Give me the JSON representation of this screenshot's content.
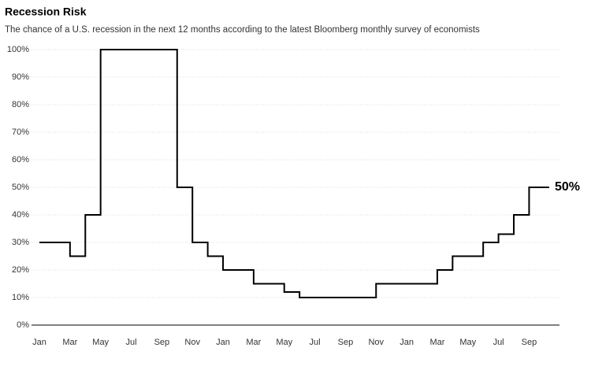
{
  "chart_data": {
    "type": "step",
    "title": "Recession Risk",
    "subtitle": "The chance of a U.S. recession in the next 12 months according to the latest Bloomberg monthly survey of economists",
    "categories": [
      "Jan",
      null,
      "Mar",
      null,
      "May",
      null,
      "Jul",
      null,
      "Sep",
      null,
      "Nov",
      null,
      "Jan",
      null,
      "Mar",
      null,
      "May",
      null,
      "Jul",
      null,
      "Sep",
      null,
      "Nov",
      null,
      "Jan",
      null,
      "Mar",
      null,
      "May",
      null,
      "Jul",
      null,
      "Sep",
      null
    ],
    "values": [
      30,
      30,
      25,
      40,
      100,
      100,
      100,
      100,
      100,
      50,
      30,
      25,
      20,
      20,
      15,
      15,
      12,
      10,
      10,
      10,
      10,
      10,
      15,
      15,
      15,
      15,
      20,
      25,
      25,
      30,
      33,
      40,
      50,
      50
    ],
    "color": "#000000",
    "end_label": "50%",
    "ylim": [
      0,
      100
    ],
    "yticks": [
      {
        "value": 0,
        "label": "0%"
      },
      {
        "value": 10,
        "label": "10%"
      },
      {
        "value": 20,
        "label": "20%"
      },
      {
        "value": 30,
        "label": "30%"
      },
      {
        "value": 40,
        "label": "40%"
      },
      {
        "value": 50,
        "label": "50%"
      },
      {
        "value": 60,
        "label": "60%"
      },
      {
        "value": 70,
        "label": "70%"
      },
      {
        "value": 80,
        "label": "80%"
      },
      {
        "value": 90,
        "label": "90%"
      },
      {
        "value": 100,
        "label": "100%"
      }
    ],
    "grid": true
  }
}
